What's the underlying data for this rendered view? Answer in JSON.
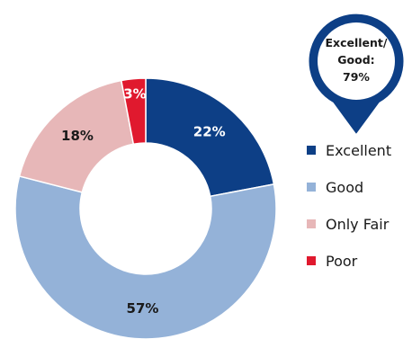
{
  "chart_data": {
    "type": "pie",
    "style": "donut",
    "categories": [
      "Excellent",
      "Good",
      "Only Fair",
      "Poor"
    ],
    "values": [
      22,
      57,
      18,
      3
    ],
    "value_labels": [
      "22%",
      "57%",
      "18%",
      "3%"
    ],
    "colors": [
      "#0d3f86",
      "#94b2d8",
      "#e7b7b8",
      "#e0192e"
    ],
    "label_colors": [
      "#ffffff",
      "#1a1a1a",
      "#1a1a1a",
      "#ffffff"
    ],
    "legend_position": "right"
  },
  "callout": {
    "line1": "Excellent/",
    "line2": "Good:",
    "line3": "79%",
    "color": "#0d3f86"
  }
}
